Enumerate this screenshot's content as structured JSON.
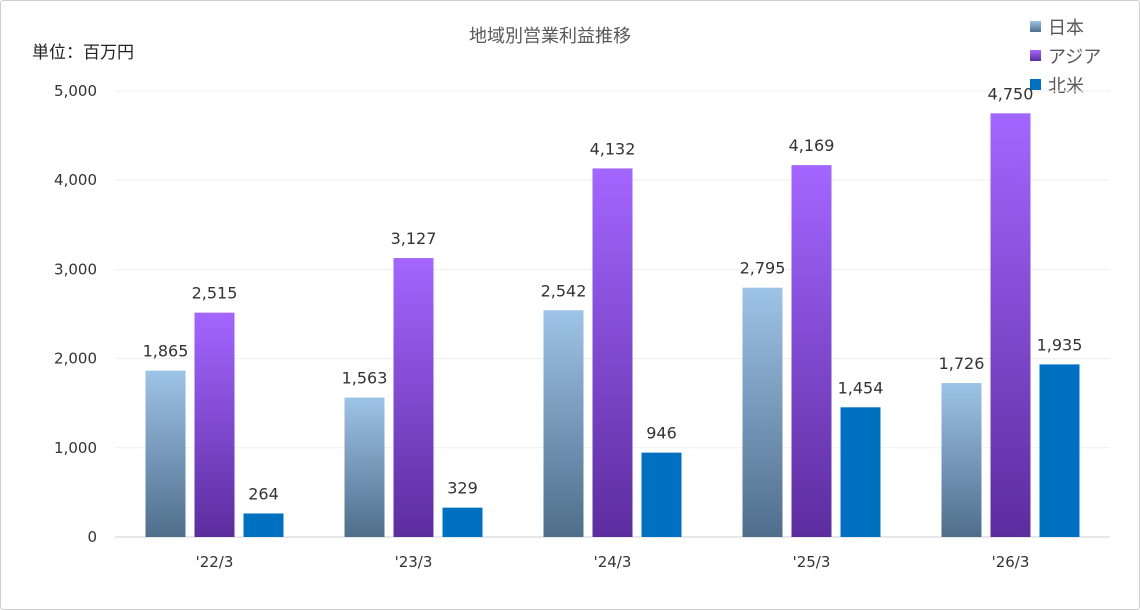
{
  "chart_data": {
    "type": "bar",
    "title": "地域別営業利益推移",
    "unit_label": "単位：百万円",
    "categories": [
      "'22/3",
      "'23/3",
      "'24/3",
      "'25/3",
      "'26/3"
    ],
    "series": [
      {
        "name": "日本",
        "values": [
          1865,
          1563,
          2542,
          2795,
          1726
        ],
        "color_top": "#9dc3e6",
        "color_bottom": "#4f6e8c"
      },
      {
        "name": "アジア",
        "values": [
          2515,
          3127,
          4132,
          4169,
          4750
        ],
        "color_top": "#a366ff",
        "color_bottom": "#5c2d9e"
      },
      {
        "name": "北米",
        "values": [
          264,
          329,
          946,
          1454,
          1935
        ],
        "color_top": "#0070c0",
        "color_bottom": "#0070c0"
      }
    ],
    "y_ticks": [
      "0",
      "1,000",
      "2,000",
      "3,000",
      "4,000",
      "5,000"
    ],
    "ylim": [
      0,
      5000
    ],
    "grid": true,
    "legend_position": "top-right",
    "data_label_format": "thousands-comma"
  }
}
